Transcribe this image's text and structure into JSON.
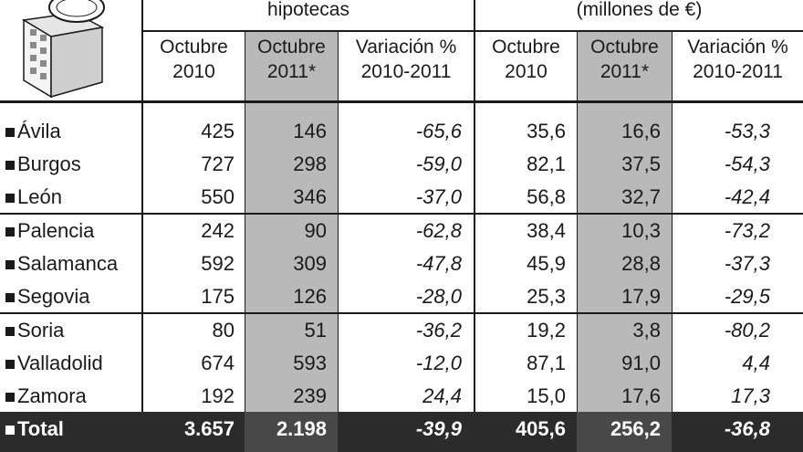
{
  "header": {
    "group1_title": "hipotecas",
    "group2_title": "(millones de €)",
    "columns": [
      {
        "line1": "Octubre",
        "line2": "2010"
      },
      {
        "line1": "Octubre",
        "line2": "2011*"
      },
      {
        "line1": "Variación %",
        "line2": "2010-2011"
      },
      {
        "line1": "Octubre",
        "line2": "2010"
      },
      {
        "line1": "Octubre",
        "line2": "2011*"
      },
      {
        "line1": "Variación %",
        "line2": "2010-2011"
      }
    ]
  },
  "rows": [
    {
      "name": "Ávila",
      "h2010": "425",
      "h2011": "146",
      "hvar": "-65,6",
      "m2010": "35,6",
      "m2011": "16,6",
      "mvar": "-53,3"
    },
    {
      "name": "Burgos",
      "h2010": "727",
      "h2011": "298",
      "hvar": "-59,0",
      "m2010": "82,1",
      "m2011": "37,5",
      "mvar": "-54,3"
    },
    {
      "name": "León",
      "h2010": "550",
      "h2011": "346",
      "hvar": "-37,0",
      "m2010": "56,8",
      "m2011": "32,7",
      "mvar": "-42,4"
    },
    {
      "name": "Palencia",
      "h2010": "242",
      "h2011": "90",
      "hvar": "-62,8",
      "m2010": "38,4",
      "m2011": "10,3",
      "mvar": "-73,2"
    },
    {
      "name": "Salamanca",
      "h2010": "592",
      "h2011": "309",
      "hvar": "-47,8",
      "m2010": "45,9",
      "m2011": "28,8",
      "mvar": "-37,3"
    },
    {
      "name": "Segovia",
      "h2010": "175",
      "h2011": "126",
      "hvar": "-28,0",
      "m2010": "25,3",
      "m2011": "17,9",
      "mvar": "-29,5"
    },
    {
      "name": "Soria",
      "h2010": "80",
      "h2011": "51",
      "hvar": "-36,2",
      "m2010": "19,2",
      "m2011": "3,8",
      "mvar": "-80,2"
    },
    {
      "name": "Valladolid",
      "h2010": "674",
      "h2011": "593",
      "hvar": "-12,0",
      "m2010": "87,1",
      "m2011": "91,0",
      "mvar": "4,4"
    },
    {
      "name": "Zamora",
      "h2010": "192",
      "h2011": "239",
      "hvar": "24,4",
      "m2010": "15,0",
      "m2011": "17,6",
      "mvar": "17,3"
    }
  ],
  "total": {
    "name": "Total",
    "h2010": "3.657",
    "h2011": "2.198",
    "hvar": "-39,9",
    "m2010": "405,6",
    "m2011": "256,2",
    "mvar": "-36,8"
  },
  "icons": {
    "corner": "building-icon"
  }
}
